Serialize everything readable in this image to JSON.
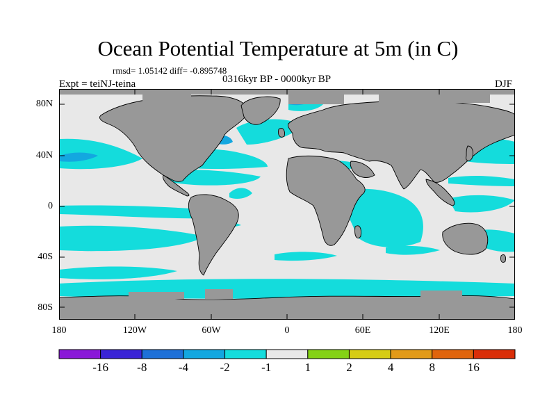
{
  "header": {
    "title": "Ocean Potential Temperature at 5m (in C)",
    "stats": "rmsd= 1.05142 diff= -0.895748",
    "period": "0316kyr BP - 0000kyr BP",
    "experiment": "Expt = teiNJ-teina",
    "season": "DJF"
  },
  "axes": {
    "lat_labels": [
      "80N",
      "40N",
      "0",
      "40S",
      "80S"
    ],
    "lon_labels": [
      "180",
      "120W",
      "60W",
      "0",
      "60E",
      "120E",
      "180"
    ]
  },
  "colorbar": {
    "colors": [
      "#8a18d8",
      "#3a24d6",
      "#1e70d8",
      "#13a7e0",
      "#14dcdc",
      "#e8e8e8",
      "#84d216",
      "#d6cc14",
      "#e29a18",
      "#e0640c",
      "#da2e08"
    ],
    "labels": [
      "-16",
      "-8",
      "-4",
      "-2",
      "-1",
      "1",
      "2",
      "4",
      "8",
      "16"
    ]
  },
  "colors": {
    "land": "#989898",
    "cool_anomaly": "#14dcdc",
    "strong_cool": "#13a7e0",
    "neutral": "#e8e8e8"
  }
}
